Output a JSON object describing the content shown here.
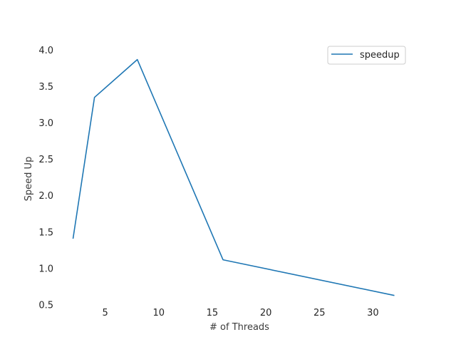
{
  "chart_data": {
    "type": "line",
    "title": "",
    "xlabel": "# of Threads",
    "ylabel": "Speed Up",
    "x": [
      2,
      4,
      8,
      16,
      32
    ],
    "series": [
      {
        "name": "speedup",
        "values": [
          1.41,
          3.35,
          3.87,
          1.12,
          0.63
        ],
        "color": "#1f77b4"
      }
    ],
    "xlim": [
      0.5,
      33.5
    ],
    "ylim": [
      0.5,
      4.12
    ],
    "xticks": [
      5,
      10,
      15,
      20,
      25,
      30
    ],
    "yticks": [
      0.5,
      1.0,
      1.5,
      2.0,
      2.5,
      3.0,
      3.5,
      4.0
    ],
    "xtick_labels": [
      "5",
      "10",
      "15",
      "20",
      "25",
      "30"
    ],
    "ytick_labels": [
      "0.5",
      "1.0",
      "1.5",
      "2.0",
      "2.5",
      "3.0",
      "3.5",
      "4.0"
    ],
    "grid": false,
    "legend": "top-right"
  }
}
